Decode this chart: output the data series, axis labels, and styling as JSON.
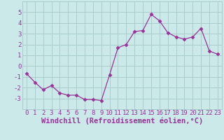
{
  "x": [
    0,
    1,
    2,
    3,
    4,
    5,
    6,
    7,
    8,
    9,
    10,
    11,
    12,
    13,
    14,
    15,
    16,
    17,
    18,
    19,
    20,
    21,
    22,
    23
  ],
  "y": [
    -0.7,
    -1.5,
    -2.2,
    -1.8,
    -2.5,
    -2.7,
    -2.7,
    -3.1,
    -3.1,
    -3.2,
    -0.8,
    1.7,
    2.0,
    3.2,
    3.3,
    4.8,
    4.2,
    3.1,
    2.7,
    2.5,
    2.7,
    3.5,
    1.4,
    1.1
  ],
  "line_color": "#993399",
  "marker": "D",
  "marker_size": 2.5,
  "bg_color": "#cce9e9",
  "grid_color": "#aacccc",
  "xlabel": "Windchill (Refroidissement éolien,°C)",
  "ylim": [
    -4,
    6
  ],
  "xlim": [
    -0.5,
    23.5
  ],
  "yticks": [
    -3,
    -2,
    -1,
    0,
    1,
    2,
    3,
    4,
    5
  ],
  "xtick_labels": [
    "0",
    "1",
    "2",
    "3",
    "4",
    "5",
    "6",
    "7",
    "8",
    "9",
    "10",
    "11",
    "12",
    "13",
    "14",
    "15",
    "16",
    "17",
    "18",
    "19",
    "20",
    "21",
    "22",
    "23"
  ],
  "tick_fontsize": 6.5,
  "label_fontsize": 7.5
}
